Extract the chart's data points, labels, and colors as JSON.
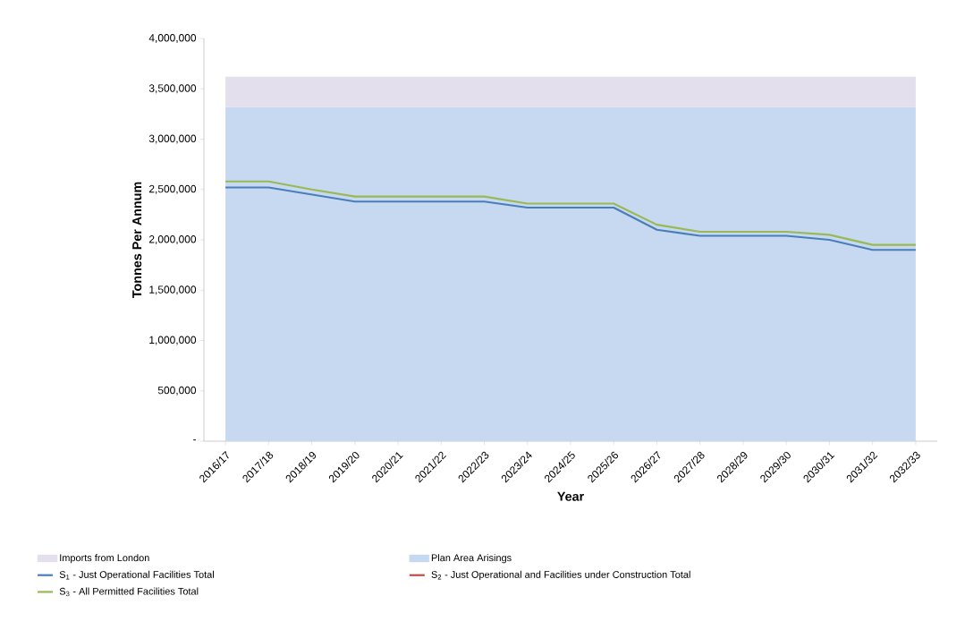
{
  "chart_data": {
    "type": "line",
    "xlabel": "Year",
    "ylabel": "Tonnes Per Annum",
    "categories": [
      "2016/17",
      "2017/18",
      "2018/19",
      "2019/20",
      "2020/21",
      "2021/22",
      "2022/23",
      "2023/24",
      "2024/25",
      "2025/26",
      "2026/27",
      "2027/28",
      "2028/29",
      "2029/30",
      "2030/31",
      "2031/32",
      "2032/33"
    ],
    "stacked": true,
    "series": [
      {
        "name": "Plan Area Arisings",
        "type": "area",
        "color": "#c6d9f0",
        "values": [
          3320000,
          3320000,
          3320000,
          3320000,
          3320000,
          3320000,
          3320000,
          3320000,
          3320000,
          3320000,
          3320000,
          3320000,
          3320000,
          3320000,
          3320000,
          3320000,
          3320000
        ]
      },
      {
        "name": "Imports from London",
        "type": "area",
        "color": "#e4dfec",
        "values": [
          300000,
          300000,
          300000,
          300000,
          300000,
          300000,
          300000,
          300000,
          300000,
          300000,
          300000,
          300000,
          300000,
          300000,
          300000,
          300000,
          300000
        ]
      },
      {
        "name": "S$_{1}$ - Just Operational Facilities Total",
        "type": "line",
        "color": "#4a7ebb",
        "values": [
          2520000,
          2520000,
          2450000,
          2380000,
          2380000,
          2380000,
          2380000,
          2320000,
          2320000,
          2320000,
          2100000,
          2040000,
          2040000,
          2040000,
          2000000,
          1900000,
          1900000
        ]
      },
      {
        "name": "S$_{2}$ - Just Operational and Facilities under Construction Total",
        "type": "line",
        "color": "#be4b48",
        "values": [
          null,
          null,
          null,
          null,
          null,
          null,
          null,
          null,
          null,
          null,
          null,
          null,
          null,
          null,
          null,
          null,
          null
        ]
      },
      {
        "name": "S$_{3}$ - All Permitted Facilities Total",
        "type": "line",
        "color": "#98b954",
        "values": [
          2580000,
          2580000,
          2500000,
          2430000,
          2430000,
          2430000,
          2430000,
          2360000,
          2360000,
          2360000,
          2150000,
          2080000,
          2080000,
          2080000,
          2050000,
          1950000,
          1950000
        ]
      }
    ],
    "ylim": [
      0,
      4000000
    ],
    "yticks": [
      {
        "value": 0,
        "label": "-"
      },
      {
        "value": 500000,
        "label": "500,000"
      },
      {
        "value": 1000000,
        "label": "1,000,000"
      },
      {
        "value": 1500000,
        "label": "1,500,000"
      },
      {
        "value": 2000000,
        "label": "2,000,000"
      },
      {
        "value": 2500000,
        "label": "2,500,000"
      },
      {
        "value": 3000000,
        "label": "3,000,000"
      },
      {
        "value": 3500000,
        "label": "3,500,000"
      },
      {
        "value": 4000000,
        "label": "4,000,000"
      }
    ],
    "grid": false,
    "legend": "bottom",
    "marker": "none",
    "line_style": "solid"
  }
}
